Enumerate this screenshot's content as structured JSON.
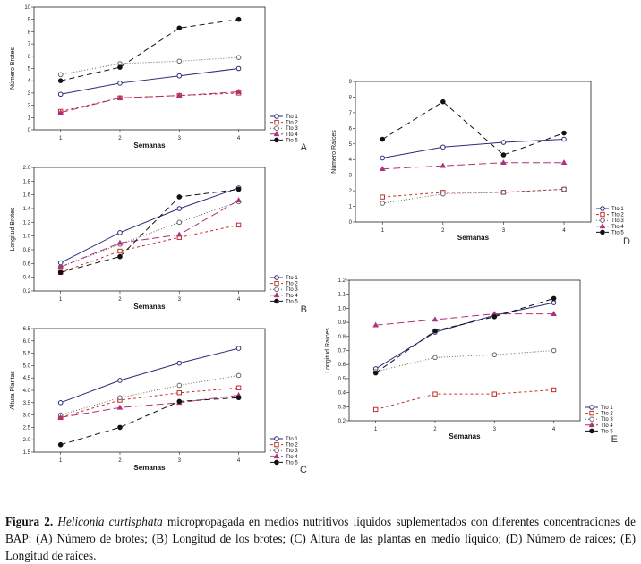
{
  "caption": {
    "label": "Figura 2.",
    "species": "Heliconia curtisphata",
    "text": " micropropagada en medios nutritivos líquidos suplementados con diferentes concentraciones de BAP: (A) Número de brotes; (B) Longitud de los brotes; (C) Altura de las plantas en medio líquido; (D) Número de raíces; (E) Longitud de raíces."
  },
  "colors": {
    "tto1": "#2b2b7a",
    "tto2": "#c0302a",
    "tto3": "#666666",
    "tto4": "#b0307a",
    "tto5": "#111111"
  },
  "chart_data": [
    {
      "panel": "A",
      "type": "line",
      "xlabel": "Semanas",
      "ylabel": "Número Brotes",
      "x": [
        1,
        2,
        3,
        4
      ],
      "ylim": [
        0,
        10
      ],
      "yticks": [
        "0",
        "1",
        "2",
        "3",
        "4",
        "5",
        "6",
        "7",
        "8",
        "9",
        "10"
      ],
      "series": [
        {
          "name": "Tto 1",
          "values": [
            2.9,
            3.8,
            4.4,
            5.0
          ]
        },
        {
          "name": "Tto 2",
          "values": [
            1.5,
            2.6,
            2.8,
            3.0
          ]
        },
        {
          "name": "Tto 3",
          "values": [
            4.5,
            5.4,
            5.6,
            5.9
          ]
        },
        {
          "name": "Tto 4",
          "values": [
            1.4,
            2.6,
            2.8,
            3.1
          ]
        },
        {
          "name": "Tto 5",
          "values": [
            4.0,
            5.1,
            8.3,
            9.0
          ]
        }
      ]
    },
    {
      "panel": "B",
      "type": "line",
      "xlabel": "Semanas",
      "ylabel": "Longitud Brotes",
      "x": [
        1,
        2,
        3,
        4
      ],
      "ylim": [
        0.2,
        2.0
      ],
      "yticks": [
        "0.2",
        "0.4",
        "0.6",
        "0.8",
        "1.0",
        "1.2",
        "1.4",
        "1.6",
        "1.8",
        "2.0"
      ],
      "series": [
        {
          "name": "Tto 1",
          "values": [
            0.61,
            1.05,
            1.4,
            1.7
          ]
        },
        {
          "name": "Tto 2",
          "values": [
            0.47,
            0.78,
            0.98,
            1.16
          ]
        },
        {
          "name": "Tto 3",
          "values": [
            0.55,
            0.88,
            1.2,
            1.5
          ]
        },
        {
          "name": "Tto 4",
          "values": [
            0.55,
            0.9,
            1.02,
            1.52
          ]
        },
        {
          "name": "Tto 5",
          "values": [
            0.47,
            0.7,
            1.57,
            1.68
          ]
        }
      ]
    },
    {
      "panel": "C",
      "type": "line",
      "xlabel": "Semanas",
      "ylabel": "Altura Plantas",
      "x": [
        1,
        2,
        3,
        4
      ],
      "ylim": [
        1.5,
        6.5
      ],
      "yticks": [
        "1.5",
        "2.0",
        "2.5",
        "3.0",
        "3.5",
        "4.0",
        "4.5",
        "5.0",
        "5.5",
        "6.0",
        "6.5"
      ],
      "series": [
        {
          "name": "Tto 1",
          "values": [
            3.5,
            4.4,
            5.1,
            5.7
          ]
        },
        {
          "name": "Tto 2",
          "values": [
            2.9,
            3.6,
            3.9,
            4.1
          ]
        },
        {
          "name": "Tto 3",
          "values": [
            3.0,
            3.7,
            4.2,
            4.6
          ]
        },
        {
          "name": "Tto 4",
          "values": [
            2.9,
            3.3,
            3.5,
            3.8
          ]
        },
        {
          "name": "Tto 5",
          "values": [
            1.8,
            2.5,
            3.55,
            3.7
          ]
        }
      ]
    },
    {
      "panel": "D",
      "type": "line",
      "xlabel": "Semanas",
      "ylabel": "Número Raíces",
      "x": [
        1,
        2,
        3,
        4
      ],
      "ylim": [
        0,
        9
      ],
      "yticks": [
        "0",
        "1",
        "2",
        "3",
        "4",
        "5",
        "6",
        "7",
        "8",
        "9"
      ],
      "series": [
        {
          "name": "Tto 1",
          "values": [
            4.1,
            4.8,
            5.1,
            5.3
          ]
        },
        {
          "name": "Tto 2",
          "values": [
            1.6,
            1.9,
            1.9,
            2.1
          ]
        },
        {
          "name": "Tto 3",
          "values": [
            1.2,
            1.8,
            1.9,
            2.1
          ]
        },
        {
          "name": "Tto 4",
          "values": [
            3.4,
            3.6,
            3.8,
            3.8
          ]
        },
        {
          "name": "Tto 5",
          "values": [
            5.3,
            7.7,
            4.3,
            5.7
          ]
        }
      ]
    },
    {
      "panel": "E",
      "type": "line",
      "xlabel": "Semanas",
      "ylabel": "Longitud Raíces",
      "x": [
        1,
        2,
        3,
        4
      ],
      "ylim": [
        0.2,
        1.2
      ],
      "yticks": [
        "0.2",
        "0.3",
        "0.4",
        "0.5",
        "0.6",
        "0.7",
        "0.8",
        "0.9",
        "1.0",
        "1.1",
        "1.2"
      ],
      "series": [
        {
          "name": "Tto 1",
          "values": [
            0.57,
            0.83,
            0.95,
            1.04
          ]
        },
        {
          "name": "Tto 2",
          "values": [
            0.28,
            0.39,
            0.39,
            0.42
          ]
        },
        {
          "name": "Tto 3",
          "values": [
            0.55,
            0.65,
            0.67,
            0.7
          ]
        },
        {
          "name": "Tto 4",
          "values": [
            0.88,
            0.92,
            0.96,
            0.96
          ]
        },
        {
          "name": "Tto 5",
          "values": [
            0.54,
            0.84,
            0.94,
            1.07
          ]
        }
      ]
    }
  ]
}
